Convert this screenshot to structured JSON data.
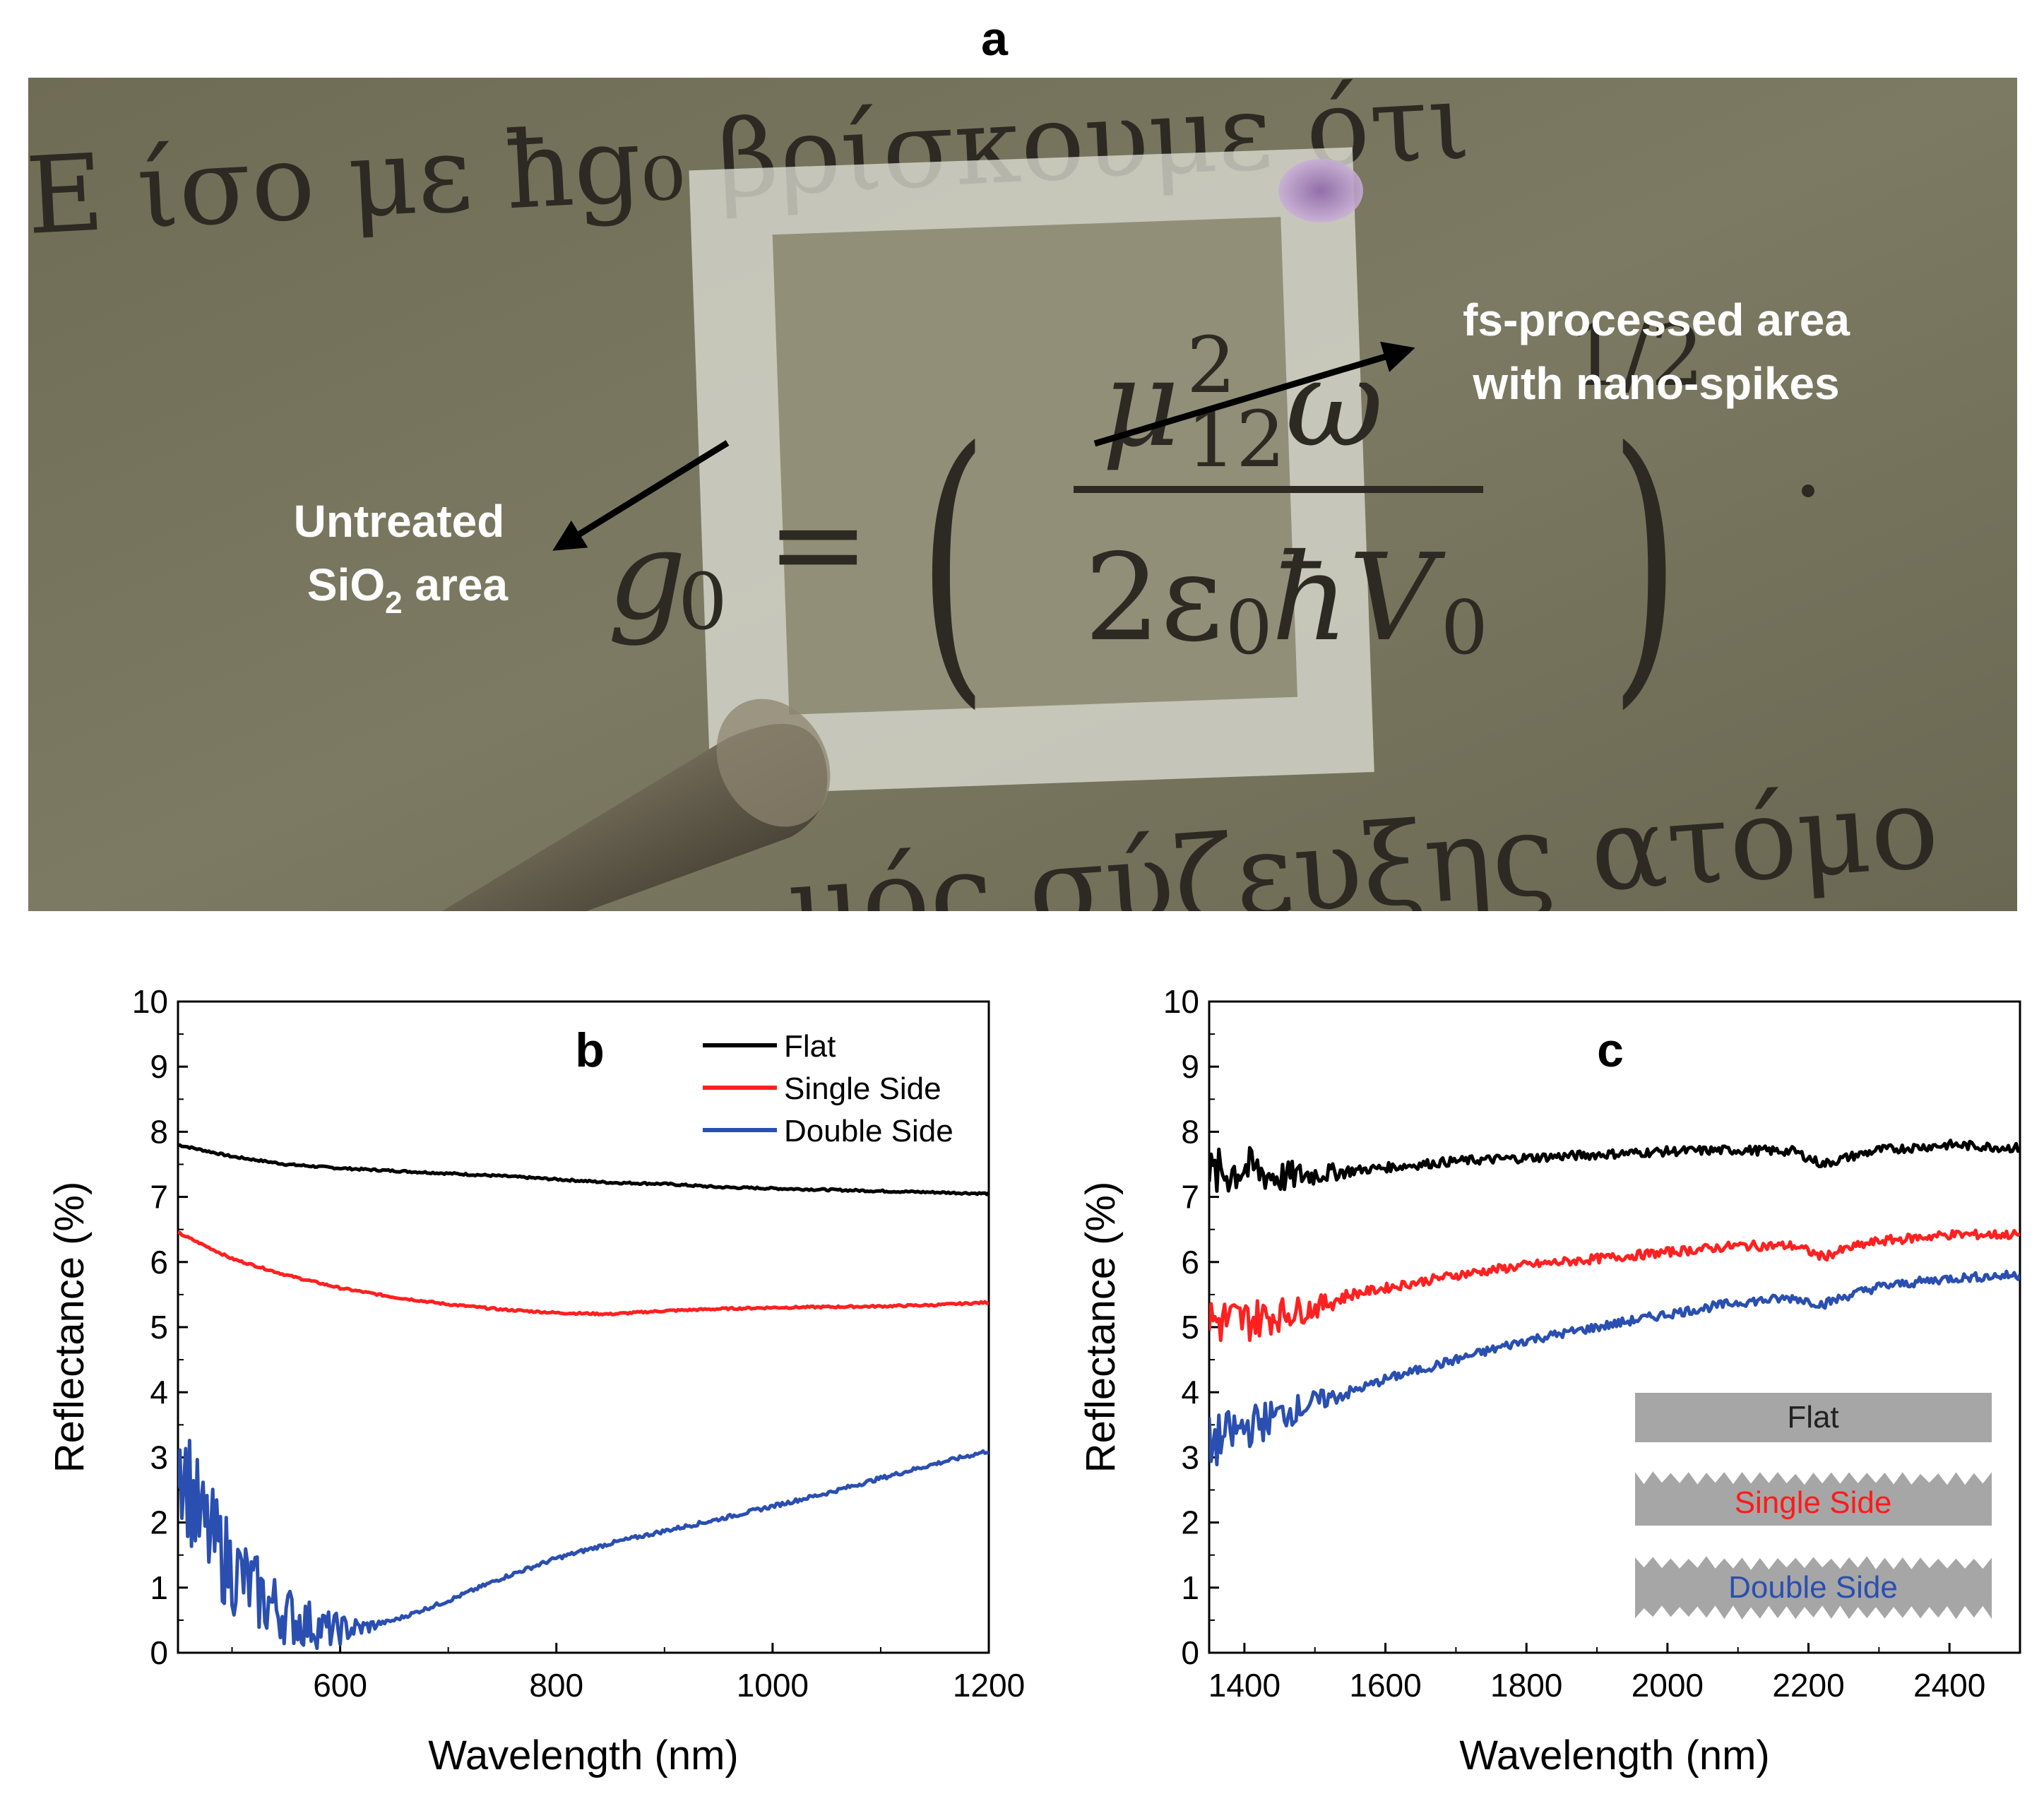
{
  "panel_a": {
    "letter": "a",
    "label_untreated_line1": "Untreated",
    "label_untreated_line2_pre": "SiO",
    "label_untreated_sub": "2",
    "label_untreated_line2_post": " area",
    "label_processed_line1": "fs-processed area",
    "label_processed_line2": "with nano-spikes",
    "background_text_top": "E ίσο με ħg₀ βρίσκουμε ότι",
    "background_text_bottom": "μός σύζευξης ατόμο",
    "colors": {
      "photo_bg": "#77745c",
      "glass": "#d9d9d3",
      "text": "#2c2a22"
    }
  },
  "chart_data": [
    {
      "panel": "b",
      "type": "line",
      "title": "b",
      "xlabel": "Wavelength (nm)",
      "ylabel": "Reflectance (%)",
      "xlim": [
        450,
        1200
      ],
      "ylim": [
        0,
        10
      ],
      "xticks": [
        600,
        800,
        1000,
        1200
      ],
      "yticks": [
        0,
        1,
        2,
        3,
        4,
        5,
        6,
        7,
        8,
        9,
        10
      ],
      "legend": "top-right",
      "series": [
        {
          "name": "Flat",
          "color": "#000000",
          "x": [
            450,
            500,
            550,
            600,
            650,
            700,
            750,
            800,
            850,
            900,
            950,
            1000,
            1050,
            1100,
            1150,
            1200
          ],
          "y": [
            7.8,
            7.62,
            7.5,
            7.44,
            7.4,
            7.36,
            7.32,
            7.27,
            7.22,
            7.2,
            7.15,
            7.13,
            7.11,
            7.09,
            7.07,
            7.05
          ]
        },
        {
          "name": "Single Side",
          "color": "#ff2020",
          "x": [
            450,
            500,
            550,
            600,
            650,
            700,
            750,
            800,
            850,
            900,
            950,
            1000,
            1050,
            1100,
            1150,
            1200
          ],
          "y": [
            6.45,
            6.05,
            5.8,
            5.6,
            5.46,
            5.35,
            5.27,
            5.22,
            5.2,
            5.25,
            5.28,
            5.3,
            5.31,
            5.32,
            5.34,
            5.38
          ]
        },
        {
          "name": "Double Side",
          "color": "#2a4fb0",
          "x": [
            450,
            470,
            500,
            530,
            560,
            590,
            620,
            650,
            700,
            750,
            800,
            850,
            900,
            950,
            1000,
            1050,
            1100,
            1150,
            1200
          ],
          "y": [
            3.2,
            2.0,
            1.3,
            0.8,
            0.5,
            0.35,
            0.38,
            0.5,
            0.8,
            1.15,
            1.45,
            1.68,
            1.87,
            2.05,
            2.25,
            2.45,
            2.68,
            2.9,
            3.1
          ]
        }
      ]
    },
    {
      "panel": "c",
      "type": "line",
      "title": "c",
      "xlabel": "Wavelength (nm)",
      "ylabel": "Reflectance (%)",
      "xlim": [
        1350,
        2500
      ],
      "ylim": [
        0,
        10
      ],
      "xticks": [
        1400,
        1600,
        1800,
        2000,
        2200,
        2400
      ],
      "yticks": [
        0,
        1,
        2,
        3,
        4,
        5,
        6,
        7,
        8,
        9,
        10
      ],
      "inset_labels": [
        "Flat",
        "Single Side",
        "Double Side"
      ],
      "series": [
        {
          "name": "Flat",
          "color": "#000000",
          "x": [
            1350,
            1400,
            1450,
            1500,
            1550,
            1600,
            1700,
            1800,
            1900,
            2000,
            2100,
            2180,
            2220,
            2260,
            2300,
            2400,
            2500
          ],
          "y": [
            7.3,
            7.45,
            7.3,
            7.35,
            7.4,
            7.45,
            7.55,
            7.6,
            7.65,
            7.7,
            7.72,
            7.7,
            7.5,
            7.62,
            7.72,
            7.8,
            7.75
          ]
        },
        {
          "name": "Single Side",
          "color": "#ff2020",
          "x": [
            1350,
            1400,
            1450,
            1500,
            1550,
            1600,
            1700,
            1800,
            1900,
            2000,
            2100,
            2180,
            2220,
            2260,
            2300,
            2400,
            2500
          ],
          "y": [
            5.1,
            5.1,
            5.2,
            5.3,
            5.5,
            5.6,
            5.8,
            5.95,
            6.05,
            6.15,
            6.25,
            6.25,
            6.08,
            6.22,
            6.32,
            6.42,
            6.42
          ]
        },
        {
          "name": "Double Side",
          "color": "#2a4fb0",
          "x": [
            1350,
            1400,
            1450,
            1500,
            1550,
            1600,
            1700,
            1800,
            1900,
            2000,
            2100,
            2180,
            2220,
            2260,
            2300,
            2400,
            2500
          ],
          "y": [
            3.2,
            3.45,
            3.65,
            3.85,
            4.0,
            4.2,
            4.5,
            4.8,
            5.0,
            5.2,
            5.38,
            5.45,
            5.35,
            5.5,
            5.62,
            5.75,
            5.8
          ]
        }
      ]
    }
  ]
}
